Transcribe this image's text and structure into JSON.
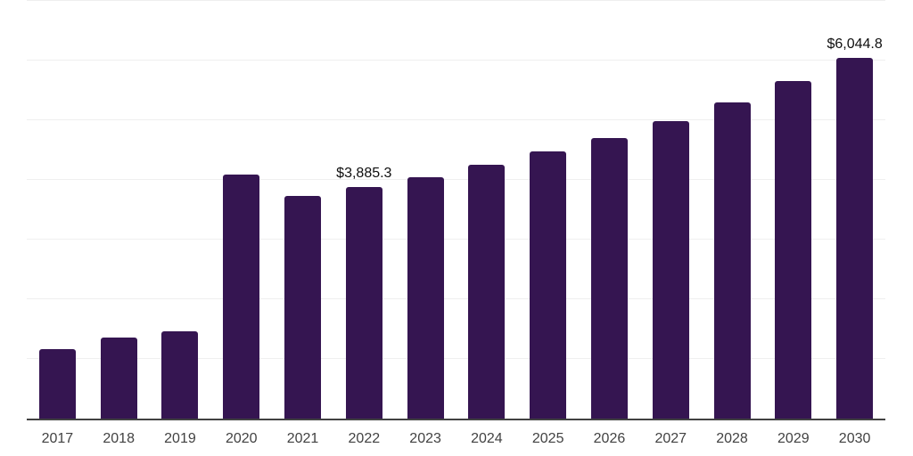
{
  "chart_data": {
    "type": "bar",
    "categories": [
      "2017",
      "2018",
      "2019",
      "2020",
      "2021",
      "2022",
      "2023",
      "2024",
      "2025",
      "2026",
      "2027",
      "2028",
      "2029",
      "2030"
    ],
    "values": [
      1160,
      1365,
      1465,
      4085,
      3730,
      3885.3,
      4050,
      4255,
      4475,
      4705,
      4980,
      5300,
      5650,
      6044.8
    ],
    "data_labels": {
      "2022": "$3,885.3",
      "2030": "$6,044.8"
    },
    "ylim": [
      0,
      7000
    ],
    "grid_step": 1000,
    "grid": true,
    "legend": false,
    "y_axis_labels": false
  },
  "style": {
    "bar_color": "#351551",
    "gridline_color": "#efefef",
    "axis_color": "#424242",
    "tick_label_color": "#424242",
    "data_label_color": "#0f0f0f",
    "background": "#ffffff"
  }
}
